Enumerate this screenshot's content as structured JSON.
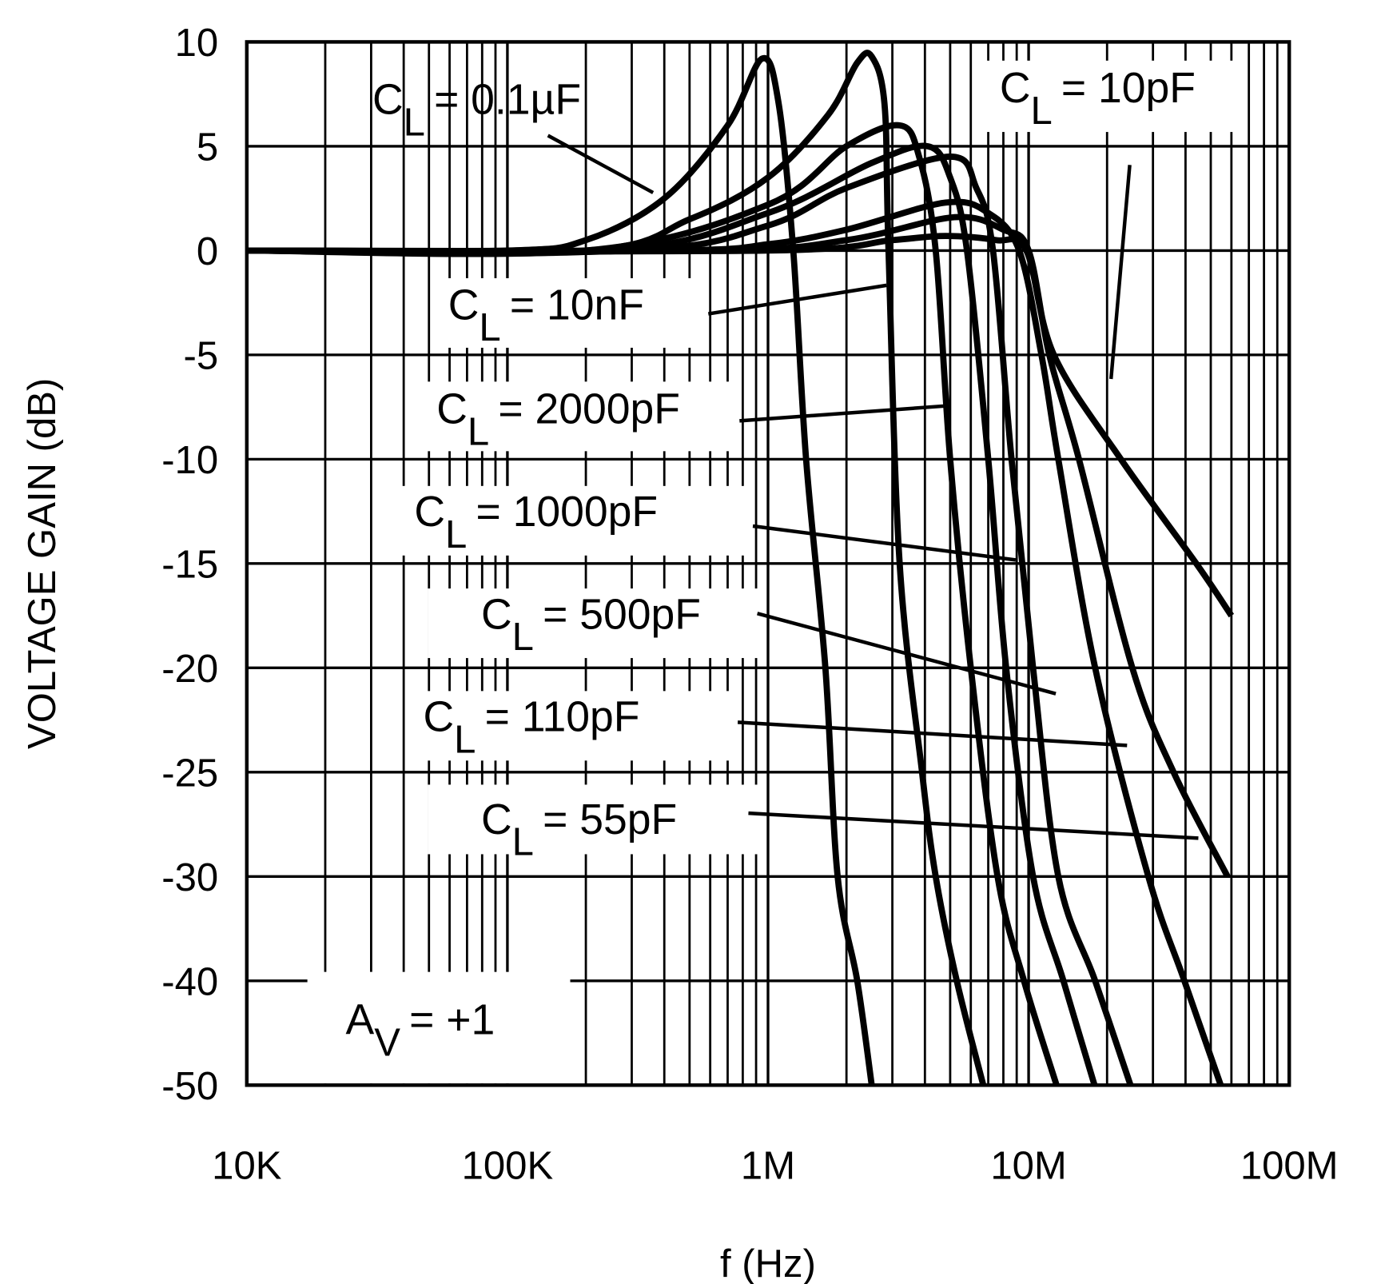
{
  "chart_data": {
    "type": "line",
    "xlabel": "f (Hz)",
    "ylabel": "VOLTAGE GAIN (dB)",
    "x_scale": "log",
    "xlim": [
      10000,
      100000000
    ],
    "ylim": [
      -50,
      10
    ],
    "y_scale_note_visible": false,
    "grid": true,
    "x_ticks": [
      {
        "value": 10000,
        "label": "10K"
      },
      {
        "value": 100000,
        "label": "100K"
      },
      {
        "value": 1000000,
        "label": "1M"
      },
      {
        "value": 10000000,
        "label": "10M"
      },
      {
        "value": 100000000,
        "label": "100M"
      }
    ],
    "y_ticks": [
      {
        "value": 10,
        "label": "10"
      },
      {
        "value": 5,
        "label": "5"
      },
      {
        "value": 0,
        "label": "0"
      },
      {
        "value": -5,
        "label": "-5"
      },
      {
        "value": -10,
        "label": "-10"
      },
      {
        "value": -15,
        "label": "-15"
      },
      {
        "value": -20,
        "label": "-20"
      },
      {
        "value": -25,
        "label": "-25"
      },
      {
        "value": -30,
        "label": "-30"
      },
      {
        "value": -40,
        "label": "-40"
      },
      {
        "value": -50,
        "label": "-50"
      }
    ],
    "annotation": {
      "symbol": "A",
      "sub": "V",
      "text": "= +1"
    },
    "series": [
      {
        "label": {
          "symbol": "C",
          "sub": "L",
          "value": "= 0.1µF"
        },
        "points": [
          [
            10000,
            0
          ],
          [
            100000,
            0
          ],
          [
            200000,
            0.5
          ],
          [
            400000,
            2.5
          ],
          [
            700000,
            6
          ],
          [
            950000,
            9.2
          ],
          [
            1100000,
            7
          ],
          [
            1250000,
            0
          ],
          [
            1400000,
            -10
          ],
          [
            1660000,
            -20
          ],
          [
            1850000,
            -30
          ],
          [
            2200000,
            -40
          ],
          [
            2500000,
            -50
          ]
        ]
      },
      {
        "label": {
          "symbol": "C",
          "sub": "L",
          "value": "= 10nF"
        },
        "points": [
          [
            10000,
            0
          ],
          [
            200000,
            0
          ],
          [
            500000,
            1.5
          ],
          [
            1000000,
            3.5
          ],
          [
            1700000,
            6.5
          ],
          [
            2200000,
            9
          ],
          [
            2500000,
            9.3
          ],
          [
            2800000,
            7
          ],
          [
            2900000,
            0
          ],
          [
            3200000,
            -15
          ],
          [
            3900000,
            -25
          ],
          [
            4400000,
            -30
          ],
          [
            5300000,
            -40
          ],
          [
            6700000,
            -50
          ]
        ]
      },
      {
        "label": {
          "symbol": "C",
          "sub": "L",
          "value": "= 2000pF"
        },
        "points": [
          [
            10000,
            0
          ],
          [
            200000,
            0
          ],
          [
            1000000,
            2.2
          ],
          [
            2000000,
            5
          ],
          [
            3200000,
            6
          ],
          [
            3800000,
            4.5
          ],
          [
            4400000,
            0
          ],
          [
            5000000,
            -10
          ],
          [
            6000000,
            -20
          ],
          [
            7600000,
            -30
          ],
          [
            9600000,
            -40
          ],
          [
            12800000,
            -50
          ]
        ]
      },
      {
        "label": {
          "symbol": "C",
          "sub": "L",
          "value": "= 1000pF"
        },
        "points": [
          [
            10000,
            0
          ],
          [
            250000,
            0
          ],
          [
            1000000,
            1.8
          ],
          [
            2500000,
            4.2
          ],
          [
            4100000,
            5
          ],
          [
            5000000,
            3.5
          ],
          [
            5800000,
            0
          ],
          [
            7000000,
            -10
          ],
          [
            8200000,
            -20
          ],
          [
            10400000,
            -30
          ],
          [
            13600000,
            -40
          ],
          [
            17900000,
            -50
          ]
        ]
      },
      {
        "label": {
          "symbol": "C",
          "sub": "L",
          "value": "= 500pF"
        },
        "points": [
          [
            10000,
            0
          ],
          [
            300000,
            0
          ],
          [
            1000000,
            1.2
          ],
          [
            2000000,
            3
          ],
          [
            5000000,
            4.5
          ],
          [
            6300000,
            3
          ],
          [
            7300000,
            0
          ],
          [
            8600000,
            -10
          ],
          [
            10400000,
            -20
          ],
          [
            13000000,
            -30
          ],
          [
            18000000,
            -40
          ],
          [
            24600000,
            -50
          ]
        ]
      },
      {
        "label": {
          "symbol": "C",
          "sub": "L",
          "value": "= 110pF"
        },
        "points": [
          [
            10000,
            0
          ],
          [
            400000,
            0
          ],
          [
            1000000,
            0.3
          ],
          [
            2000000,
            1
          ],
          [
            4800000,
            2.3
          ],
          [
            7000000,
            1.8
          ],
          [
            9200000,
            0
          ],
          [
            11200000,
            -5
          ],
          [
            13000000,
            -10
          ],
          [
            18000000,
            -20
          ],
          [
            28800000,
            -30
          ],
          [
            39600000,
            -40
          ],
          [
            54600000,
            -50
          ]
        ]
      },
      {
        "label": {
          "symbol": "C",
          "sub": "L",
          "value": "= 55pF"
        },
        "points": [
          [
            10000,
            0
          ],
          [
            600000,
            0
          ],
          [
            2000000,
            0.5
          ],
          [
            5200000,
            1.6
          ],
          [
            8000000,
            1
          ],
          [
            10000000,
            0
          ],
          [
            12000000,
            -5
          ],
          [
            15600000,
            -10
          ],
          [
            25000000,
            -20
          ],
          [
            36000000,
            -25
          ],
          [
            58000000,
            -30
          ]
        ]
      },
      {
        "label": {
          "symbol": "C",
          "sub": "L",
          "value": "= 10pF"
        },
        "points": [
          [
            10000,
            0
          ],
          [
            1000000,
            0
          ],
          [
            3000000,
            0.5
          ],
          [
            4800000,
            0.7
          ],
          [
            7500000,
            0.5
          ],
          [
            9800000,
            0
          ],
          [
            12500000,
            -5
          ],
          [
            22600000,
            -10
          ],
          [
            44000000,
            -15
          ],
          [
            60000000,
            -17.5
          ]
        ]
      }
    ]
  }
}
